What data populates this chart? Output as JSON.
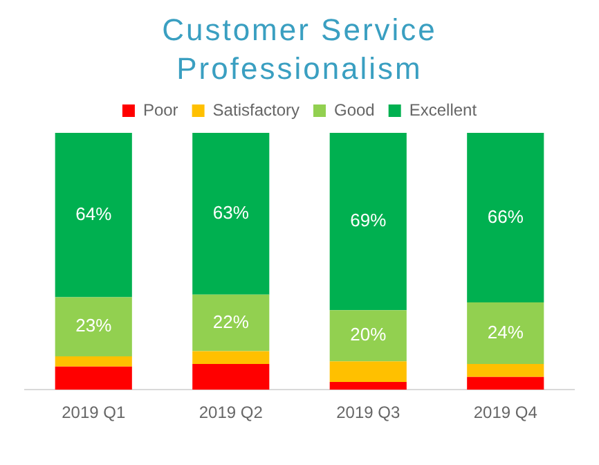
{
  "chart_data": {
    "type": "bar",
    "title": "Customer Service Professionalism",
    "categories": [
      "2019 Q1",
      "2019 Q2",
      "2019 Q3",
      "2019 Q4"
    ],
    "stacked": true,
    "legend": "top",
    "grid": false,
    "series": [
      {
        "name": "Poor",
        "color": "#ff0000",
        "values": [
          9,
          10,
          3,
          5
        ]
      },
      {
        "name": "Satisfactory",
        "color": "#ffc000",
        "values": [
          4,
          5,
          8,
          5
        ]
      },
      {
        "name": "Good",
        "color": "#92d050",
        "values": [
          23,
          22,
          20,
          24
        ],
        "value_labels": [
          "23%",
          "22%",
          "20%",
          "24%"
        ]
      },
      {
        "name": "Excellent",
        "color": "#00b050",
        "values": [
          64,
          63,
          69,
          66
        ],
        "value_labels": [
          "64%",
          "63%",
          "69%",
          "66%"
        ]
      }
    ]
  }
}
